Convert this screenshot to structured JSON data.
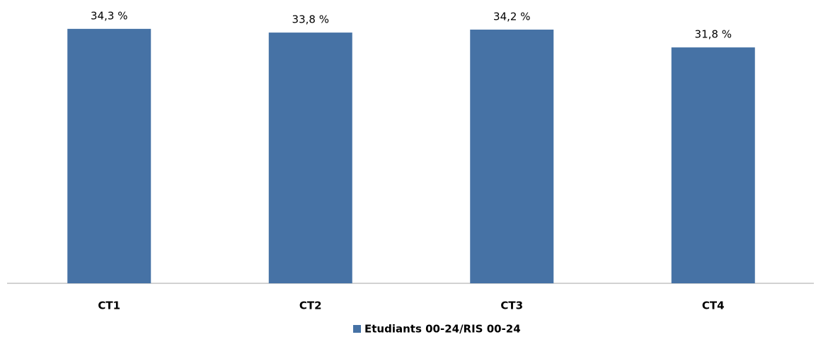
{
  "chart_data": {
    "type": "bar",
    "categories": [
      "CT1",
      "CT2",
      "CT3",
      "CT4"
    ],
    "series": [
      {
        "name": "Etudiants 00-24/RIS 00-24",
        "color": "#4672a5",
        "values": [
          34.3,
          33.8,
          34.2,
          31.8
        ],
        "value_labels": [
          "34,3 %",
          "33,8 %",
          "34,2 %",
          "31,8 %"
        ]
      }
    ],
    "legend": "bottom"
  }
}
